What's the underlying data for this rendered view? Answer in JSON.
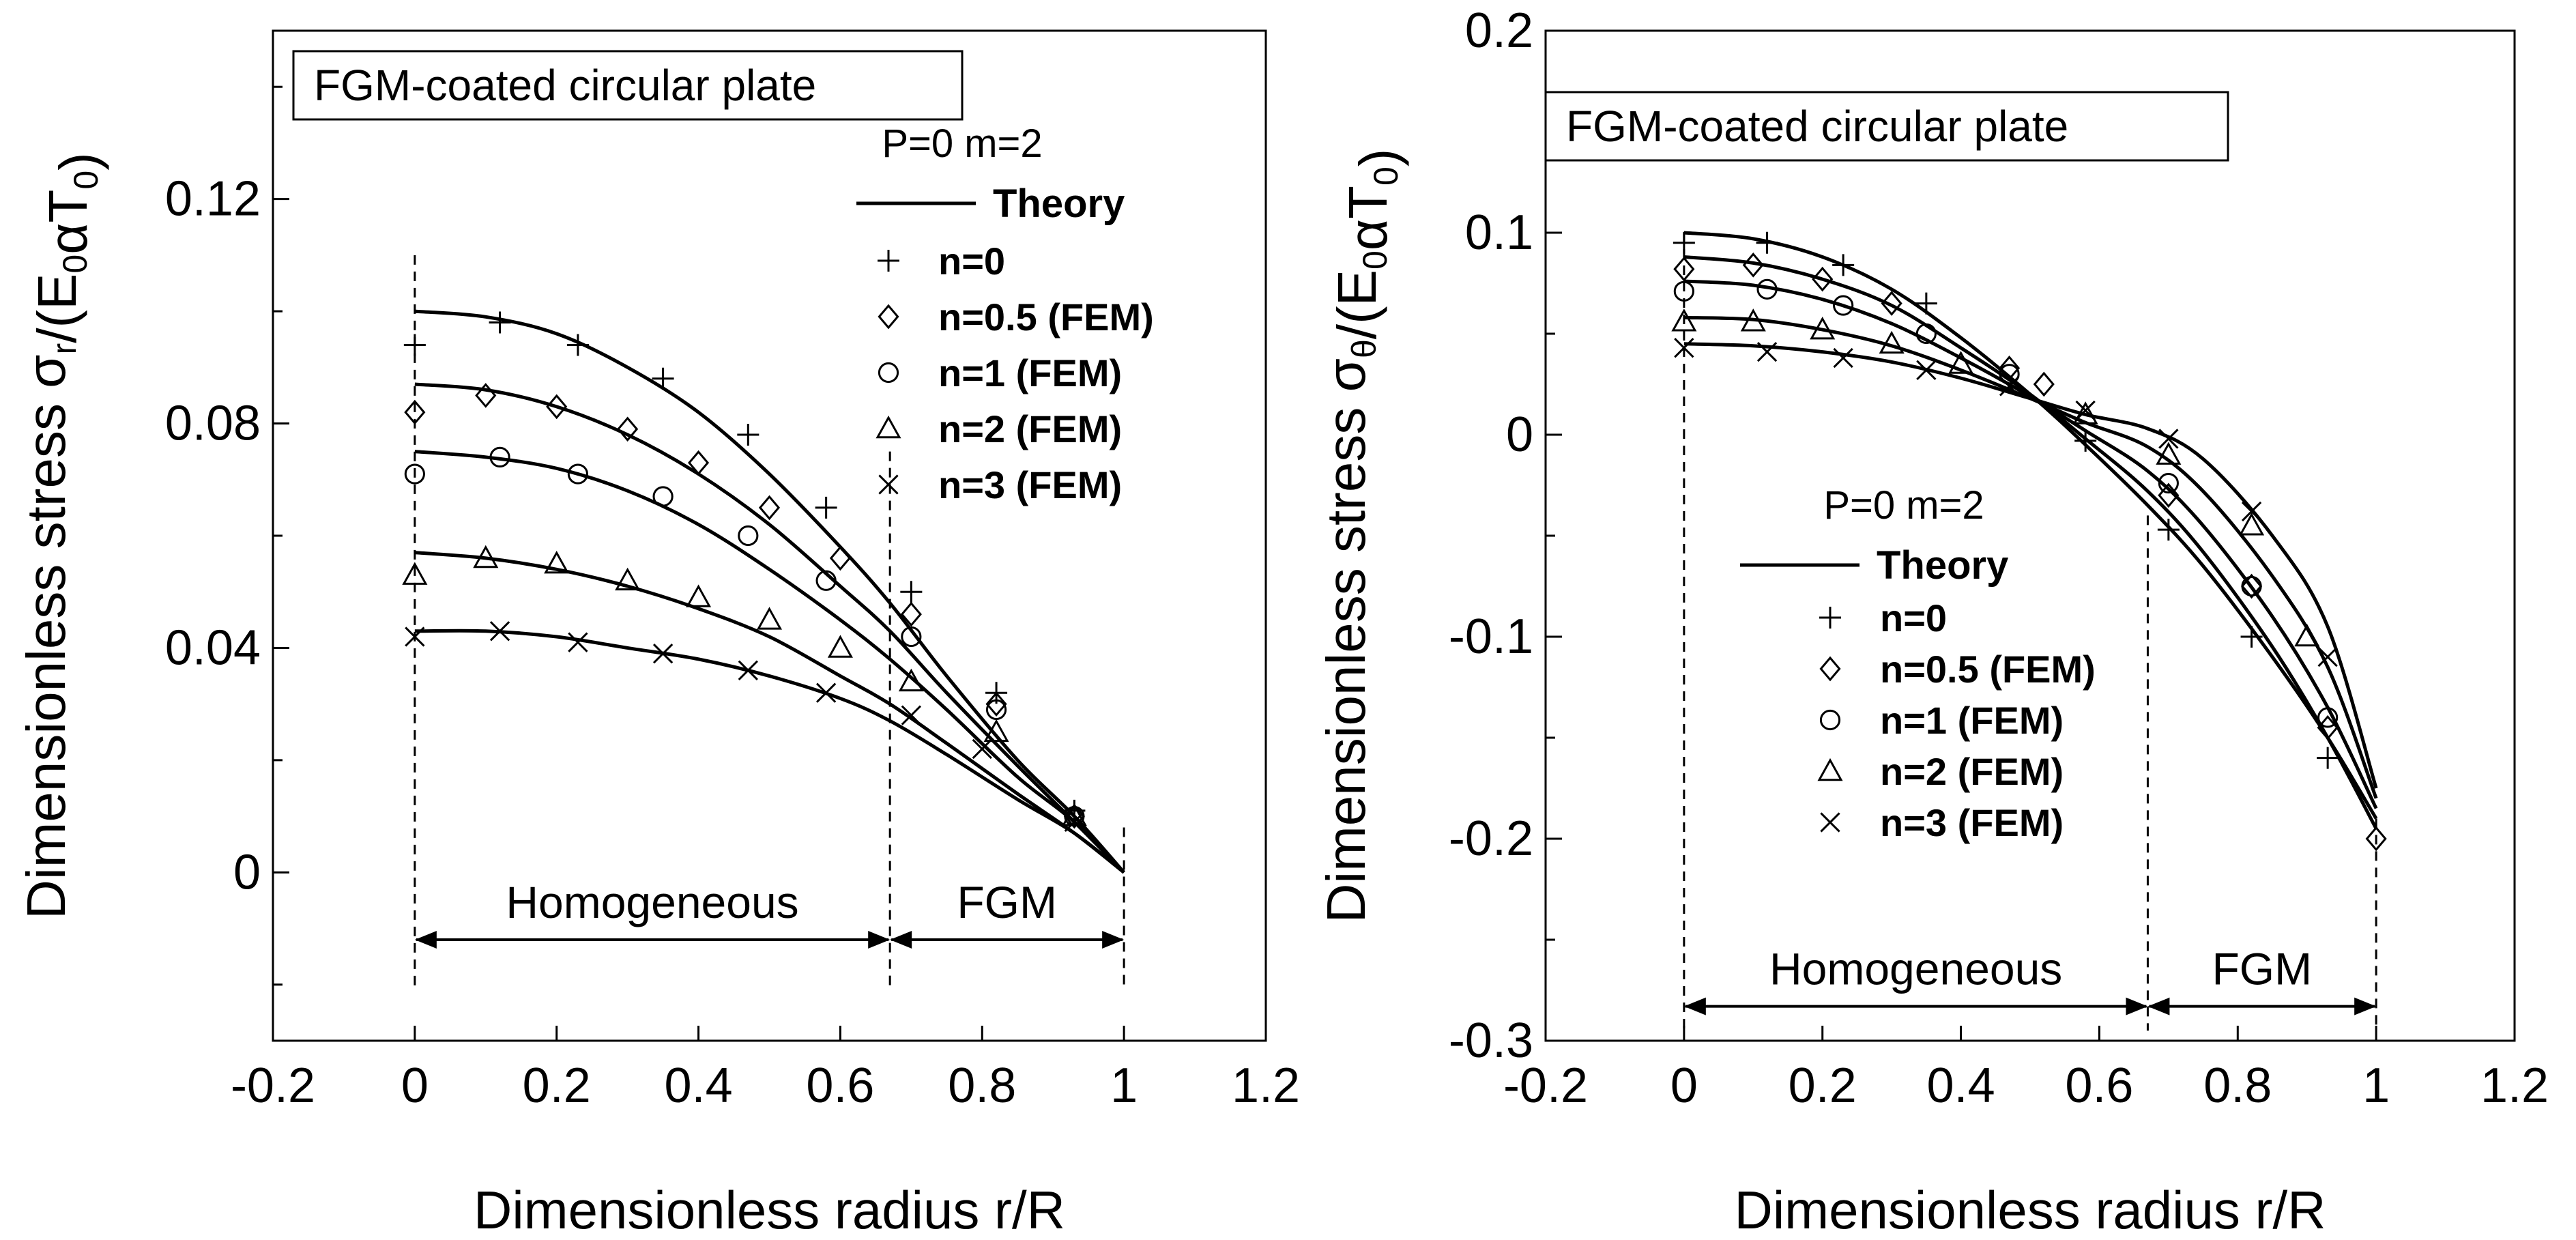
{
  "chart_data": [
    {
      "type": "line",
      "title_box": "FGM-coated circular plate",
      "xlabel": "Dimensionless radius  r/R",
      "ylabel_main": "Dimensionless stress σ",
      "ylabel_sub": "r",
      "ylabel_tail": "/(E",
      "ylabel_sub2": "0",
      "ylabel_tail2": "αT",
      "ylabel_sub3": "0",
      "ylabel_close": ")",
      "xlim": [
        -0.2,
        1.2
      ],
      "ylim": [
        -0.03,
        0.15
      ],
      "xticks": [
        -0.2,
        0,
        0.2,
        0.4,
        0.6,
        0.8,
        1,
        1.2
      ],
      "xtick_labels": [
        "-0.2",
        "0",
        "0.2",
        "0.4",
        "0.6",
        "0.8",
        "1",
        "1.2"
      ],
      "yticks_labeled": [
        0,
        0.04,
        0.08,
        0.12
      ],
      "ytick_labels": [
        "0",
        "0.04",
        "0.08",
        "0.12"
      ],
      "yticks_minor": [
        -0.02,
        0.02,
        0.06,
        0.1,
        0.14
      ],
      "legend_header": "P=0  m=2",
      "legend_theory": "Theory",
      "regions": [
        {
          "label": "Homogeneous",
          "from": 0,
          "to": 0.67
        },
        {
          "label": "FGM",
          "from": 0.67,
          "to": 1
        }
      ],
      "dashed_x": [
        0,
        0.67,
        1
      ],
      "series": [
        {
          "name": "n=0",
          "marker": "plus",
          "theory_x": [
            0,
            0.1,
            0.2,
            0.3,
            0.4,
            0.5,
            0.6,
            0.67,
            0.75,
            0.85,
            0.93,
            1
          ],
          "theory_y": [
            0.1,
            0.099,
            0.096,
            0.09,
            0.082,
            0.071,
            0.058,
            0.048,
            0.035,
            0.02,
            0.01,
            0
          ],
          "fem_x": [
            0,
            0.12,
            0.23,
            0.35,
            0.47,
            0.58,
            0.7,
            0.82,
            0.93
          ],
          "fem_y": [
            0.094,
            0.098,
            0.094,
            0.088,
            0.078,
            0.065,
            0.05,
            0.032,
            0.011
          ]
        },
        {
          "name": "n=0.5 (FEM)",
          "marker": "diamond",
          "theory_x": [
            0,
            0.1,
            0.2,
            0.3,
            0.4,
            0.5,
            0.6,
            0.67,
            0.75,
            0.85,
            0.93,
            1
          ],
          "theory_y": [
            0.087,
            0.086,
            0.083,
            0.078,
            0.071,
            0.062,
            0.051,
            0.043,
            0.032,
            0.019,
            0.009,
            0
          ],
          "fem_x": [
            0,
            0.1,
            0.2,
            0.3,
            0.4,
            0.5,
            0.6,
            0.7,
            0.82,
            0.93
          ],
          "fem_y": [
            0.082,
            0.085,
            0.083,
            0.079,
            0.073,
            0.065,
            0.056,
            0.046,
            0.03,
            0.01
          ]
        },
        {
          "name": "n=1 (FEM)",
          "marker": "circle",
          "theory_x": [
            0,
            0.1,
            0.2,
            0.3,
            0.4,
            0.5,
            0.6,
            0.67,
            0.75,
            0.85,
            0.93,
            1
          ],
          "theory_y": [
            0.075,
            0.074,
            0.072,
            0.068,
            0.062,
            0.054,
            0.045,
            0.038,
            0.029,
            0.017,
            0.009,
            0
          ],
          "fem_x": [
            0,
            0.12,
            0.23,
            0.35,
            0.47,
            0.58,
            0.7,
            0.82,
            0.93
          ],
          "fem_y": [
            0.071,
            0.074,
            0.071,
            0.067,
            0.06,
            0.052,
            0.042,
            0.029,
            0.01
          ]
        },
        {
          "name": "n=2 (FEM)",
          "marker": "triangle",
          "theory_x": [
            0,
            0.1,
            0.2,
            0.3,
            0.4,
            0.5,
            0.6,
            0.67,
            0.75,
            0.85,
            0.93,
            1
          ],
          "theory_y": [
            0.057,
            0.056,
            0.054,
            0.051,
            0.047,
            0.042,
            0.035,
            0.03,
            0.023,
            0.014,
            0.007,
            0
          ],
          "fem_x": [
            0,
            0.1,
            0.2,
            0.3,
            0.4,
            0.5,
            0.6,
            0.7,
            0.82,
            0.93
          ],
          "fem_y": [
            0.053,
            0.056,
            0.055,
            0.052,
            0.049,
            0.045,
            0.04,
            0.034,
            0.025,
            0.01
          ]
        },
        {
          "name": "n=3 (FEM)",
          "marker": "x",
          "theory_x": [
            0,
            0.1,
            0.2,
            0.3,
            0.4,
            0.5,
            0.6,
            0.67,
            0.75,
            0.85,
            0.93,
            1
          ],
          "theory_y": [
            0.043,
            0.043,
            0.042,
            0.04,
            0.038,
            0.035,
            0.031,
            0.027,
            0.021,
            0.013,
            0.007,
            0
          ],
          "fem_x": [
            0,
            0.12,
            0.23,
            0.35,
            0.47,
            0.58,
            0.7,
            0.8,
            0.93
          ],
          "fem_y": [
            0.042,
            0.043,
            0.041,
            0.039,
            0.036,
            0.032,
            0.028,
            0.022,
            0.009
          ]
        }
      ]
    },
    {
      "type": "line",
      "title_box": "FGM-coated circular plate",
      "xlabel": "Dimensionless radius  r/R",
      "ylabel_main": "Dimensionless stress σ",
      "ylabel_sub": "θ",
      "ylabel_tail": "/(E",
      "ylabel_sub2": "0",
      "ylabel_tail2": "αT",
      "ylabel_sub3": "0",
      "ylabel_close": ")",
      "xlim": [
        -0.2,
        1.2
      ],
      "ylim": [
        -0.3,
        0.2
      ],
      "xticks": [
        -0.2,
        0,
        0.2,
        0.4,
        0.6,
        0.8,
        1,
        1.2
      ],
      "xtick_labels": [
        "-0.2",
        "0",
        "0.2",
        "0.4",
        "0.6",
        "0.8",
        "1",
        "1.2"
      ],
      "yticks_labeled": [
        -0.3,
        -0.2,
        -0.1,
        0,
        0.1,
        0.2
      ],
      "ytick_labels": [
        "-0.3",
        "-0.2",
        "-0.1",
        "0",
        "0.1",
        "0.2"
      ],
      "yticks_minor": [
        -0.25,
        -0.15,
        -0.05,
        0.05,
        0.15
      ],
      "legend_header": "P=0  m=2",
      "legend_theory": "Theory",
      "regions": [
        {
          "label": "Homogeneous",
          "from": 0,
          "to": 0.67
        },
        {
          "label": "FGM",
          "from": 0.67,
          "to": 1
        }
      ],
      "dashed_x": [
        0,
        0.67,
        1
      ],
      "series": [
        {
          "name": "n=0",
          "marker": "plus",
          "theory_x": [
            0,
            0.1,
            0.2,
            0.3,
            0.4,
            0.5,
            0.58,
            0.67,
            0.75,
            0.85,
            0.93,
            1
          ],
          "theory_y": [
            0.1,
            0.097,
            0.088,
            0.072,
            0.048,
            0.02,
            -0.005,
            -0.035,
            -0.065,
            -0.11,
            -0.15,
            -0.19
          ],
          "fem_x": [
            0,
            0.12,
            0.23,
            0.35,
            0.58,
            0.7,
            0.82,
            0.93
          ],
          "fem_y": [
            0.095,
            0.095,
            0.084,
            0.065,
            -0.003,
            -0.047,
            -0.1,
            -0.16
          ]
        },
        {
          "name": "n=0.5 (FEM)",
          "marker": "diamond",
          "theory_x": [
            0,
            0.1,
            0.2,
            0.3,
            0.4,
            0.5,
            0.58,
            0.67,
            0.75,
            0.85,
            0.93,
            1
          ],
          "theory_y": [
            0.088,
            0.085,
            0.077,
            0.064,
            0.043,
            0.02,
            -0.002,
            -0.028,
            -0.058,
            -0.105,
            -0.15,
            -0.195
          ],
          "fem_x": [
            0,
            0.1,
            0.2,
            0.3,
            0.47,
            0.52,
            0.7,
            0.82,
            0.93,
            1
          ],
          "fem_y": [
            0.082,
            0.084,
            0.077,
            0.065,
            0.033,
            0.025,
            -0.03,
            -0.075,
            -0.145,
            -0.2
          ]
        },
        {
          "name": "n=1 (FEM)",
          "marker": "circle",
          "theory_x": [
            0,
            0.1,
            0.2,
            0.3,
            0.4,
            0.5,
            0.58,
            0.67,
            0.75,
            0.85,
            0.93,
            1
          ],
          "theory_y": [
            0.076,
            0.074,
            0.067,
            0.055,
            0.038,
            0.019,
            0.002,
            -0.018,
            -0.045,
            -0.09,
            -0.135,
            -0.185
          ],
          "fem_x": [
            0,
            0.12,
            0.23,
            0.35,
            0.47,
            0.7,
            0.82,
            0.93
          ],
          "fem_y": [
            0.071,
            0.072,
            0.064,
            0.05,
            0.03,
            -0.024,
            -0.075,
            -0.14
          ]
        },
        {
          "name": "n=2 (FEM)",
          "marker": "triangle",
          "theory_x": [
            0,
            0.1,
            0.2,
            0.3,
            0.4,
            0.5,
            0.58,
            0.67,
            0.75,
            0.85,
            0.93,
            1
          ],
          "theory_y": [
            0.058,
            0.057,
            0.052,
            0.044,
            0.032,
            0.018,
            0.006,
            -0.006,
            -0.028,
            -0.07,
            -0.115,
            -0.18
          ],
          "fem_x": [
            0,
            0.1,
            0.2,
            0.3,
            0.4,
            0.58,
            0.7,
            0.82,
            0.9
          ],
          "fem_y": [
            0.056,
            0.056,
            0.052,
            0.045,
            0.035,
            0.01,
            -0.01,
            -0.045,
            -0.1
          ]
        },
        {
          "name": "n=3 (FEM)",
          "marker": "x",
          "theory_x": [
            0,
            0.1,
            0.2,
            0.3,
            0.4,
            0.5,
            0.58,
            0.67,
            0.75,
            0.85,
            0.93,
            1
          ],
          "theory_y": [
            0.045,
            0.044,
            0.041,
            0.036,
            0.028,
            0.018,
            0.01,
            0.003,
            -0.012,
            -0.05,
            -0.095,
            -0.175
          ],
          "fem_x": [
            0,
            0.12,
            0.23,
            0.35,
            0.47,
            0.58,
            0.7,
            0.82,
            0.93
          ],
          "fem_y": [
            0.043,
            0.041,
            0.038,
            0.032,
            0.024,
            0.012,
            -0.002,
            -0.038,
            -0.11
          ]
        }
      ]
    }
  ]
}
